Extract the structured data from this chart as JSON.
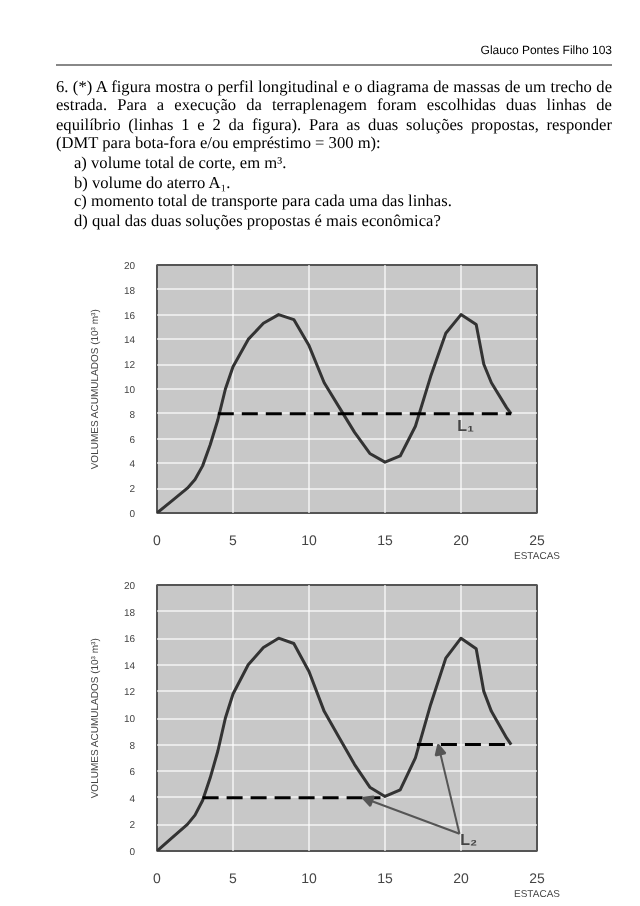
{
  "chart_data": [
    {
      "type": "line",
      "annotations": [
        "Glauco Pontes Filho 103",
        "6. (*) A figura mostra o perfil longitudinal e o diagrama de massas de um trecho de estrada. Para a execução da terraplenagem foram escolhidas duas linhas de equilíbrio (linhas 1 e 2 da figura). Para as duas soluções propostas, responder (DMT para bota-fora e/ou empréstimo = 300 m):",
        "a) volume total de corte, em m³.",
        "b) volume do aterro A₁.",
        "c) momento total de transporte para cada uma das linhas.",
        "d) qual das duas soluções propostas é mais econômica?"
      ],
      "xlabel": "ESTACAS",
      "ylabel": "VOLUMES ACUMULADOS (10³ m³)",
      "xlim": [
        0,
        25
      ],
      "ylim": [
        0,
        20
      ],
      "xticks": [
        0,
        5,
        10,
        15,
        20,
        25
      ],
      "yticks": [
        0,
        2,
        4,
        6,
        8,
        10,
        12,
        14,
        16,
        18,
        20
      ],
      "grid": true,
      "series": [
        {
          "color": "#333333",
          "line_style": "solid",
          "x": [
            0,
            1,
            2,
            2.5,
            3,
            3.5,
            4,
            4.5,
            5,
            6,
            7,
            8,
            9,
            10,
            11,
            12,
            13,
            14,
            15,
            16,
            17,
            18,
            19,
            20,
            21,
            21.5,
            22,
            23,
            23.3
          ],
          "values": [
            0,
            1,
            2,
            2.7,
            3.8,
            5.5,
            7.5,
            10,
            11.8,
            14,
            15.3,
            16,
            15.6,
            13.5,
            10.5,
            8.5,
            6.5,
            4.8,
            4.1,
            4.6,
            7,
            11,
            14.5,
            16,
            15.2,
            12,
            10.5,
            8.5,
            8
          ]
        },
        {
          "name": "L₁",
          "color": "#000000",
          "line_style": "dashed",
          "x": [
            4,
            23.3
          ],
          "values": [
            8,
            8
          ]
        }
      ]
    },
    {
      "type": "line",
      "annotations": [
        {
          "text": "L₂",
          "x": 18.5,
          "y": 8
        }
      ],
      "xlabel": "ESTACAS",
      "ylabel": "VOLUMES ACUMULADOS (10³ m³)",
      "xlim": [
        0,
        25
      ],
      "ylim": [
        0,
        20
      ],
      "xticks": [
        0,
        5,
        10,
        15,
        20,
        25
      ],
      "yticks": [
        0,
        2,
        4,
        6,
        8,
        10,
        12,
        14,
        16,
        18,
        20
      ],
      "grid": true,
      "series": [
        {
          "color": "#333333",
          "line_style": "solid",
          "x": [
            0,
            1,
            2,
            2.5,
            3,
            3.5,
            4,
            4.5,
            5,
            6,
            7,
            8,
            9,
            10,
            11,
            12,
            13,
            14,
            15,
            16,
            17,
            18,
            19,
            20,
            21,
            21.5,
            22,
            23,
            23.3
          ],
          "values": [
            0,
            1,
            2,
            2.7,
            3.8,
            5.5,
            7.5,
            10,
            11.8,
            14,
            15.3,
            16,
            15.6,
            13.5,
            10.5,
            8.5,
            6.5,
            4.8,
            4.1,
            4.6,
            7,
            11,
            14.5,
            16,
            15.2,
            12,
            10.5,
            8.5,
            8
          ]
        },
        {
          "color": "#000000",
          "line_style": "dashed",
          "x": [
            3,
            14.7
          ],
          "values": [
            4,
            4
          ]
        },
        {
          "color": "#000000",
          "line_style": "dashed",
          "x": [
            17.1,
            23.3
          ],
          "values": [
            8,
            8
          ]
        }
      ]
    }
  ]
}
